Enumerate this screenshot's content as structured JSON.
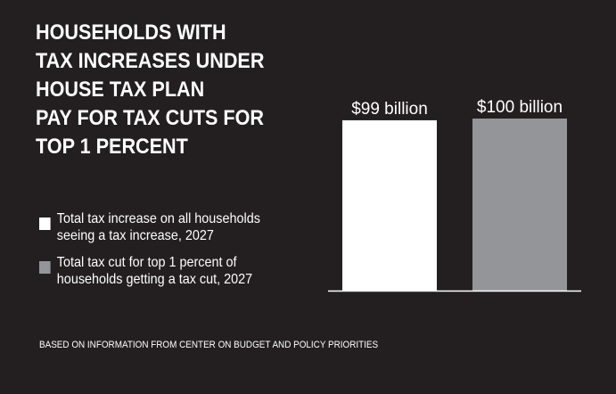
{
  "title_lines": [
    "HOUSEHOLDS WITH",
    "TAX INCREASES UNDER",
    "HOUSE TAX PLAN",
    "PAY FOR TAX CUTS FOR",
    "TOP 1 PERCENT"
  ],
  "legend": [
    {
      "lines": [
        "Total tax increase on all households",
        "seeing a tax increase, 2027"
      ],
      "color": "#ffffff"
    },
    {
      "lines": [
        "Total tax cut for top 1 percent of",
        "households getting a tax cut, 2027"
      ],
      "color": "#939598"
    }
  ],
  "source": "BASED ON INFORMATION FROM CENTER ON BUDGET AND POLICY PRIORITIES",
  "chart_data": {
    "type": "bar",
    "categories": [
      "Total tax increase on all households seeing a tax increase, 2027",
      "Total tax cut for top 1 percent of households getting a tax cut, 2027"
    ],
    "values": [
      99,
      100
    ],
    "data_labels": [
      "$99 billion",
      "$100 billion"
    ],
    "colors": [
      "#ffffff",
      "#939598"
    ],
    "ylim": [
      0,
      100
    ],
    "grid": false,
    "legend_position": "left"
  }
}
